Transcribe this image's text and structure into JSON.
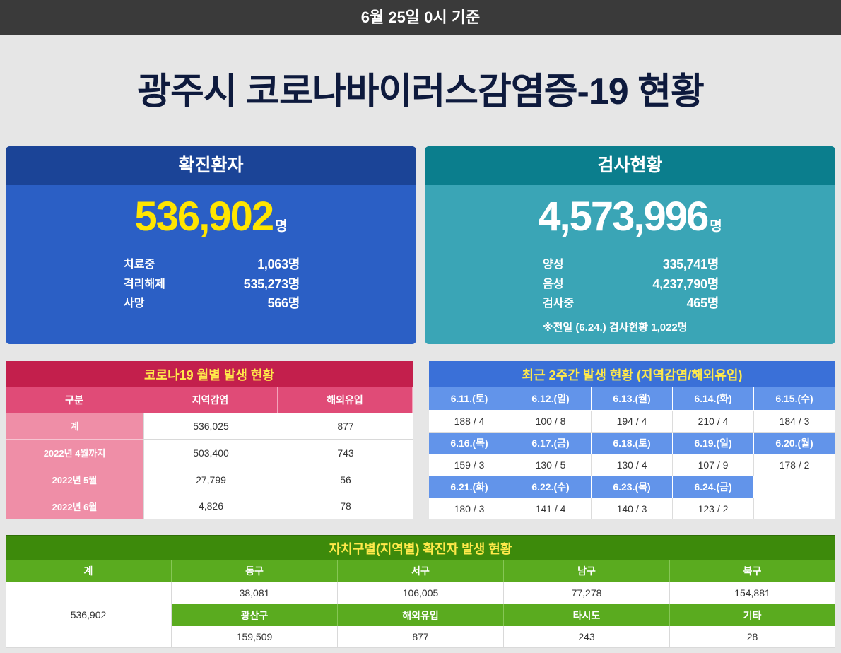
{
  "header": {
    "base_date": "6월 25일 0시 기준"
  },
  "page_title": "광주시 코로나바이러스감염증-19 현황",
  "confirmed": {
    "title": "확진환자",
    "total": "536,902",
    "unit": "명",
    "rows": [
      {
        "label": "치료중",
        "value": "1,063명"
      },
      {
        "label": "격리해제",
        "value": "535,273명"
      },
      {
        "label": "사망",
        "value": "566명"
      }
    ]
  },
  "tests": {
    "title": "검사현황",
    "total": "4,573,996",
    "unit": "명",
    "rows": [
      {
        "label": "양성",
        "value": "335,741명"
      },
      {
        "label": "음성",
        "value": "4,237,790명"
      },
      {
        "label": "검사중",
        "value": "465명"
      }
    ],
    "note": "※전일 (6.24.) 검사현황 1,022명"
  },
  "monthly": {
    "title": "코로나19 월별 발생 현황",
    "columns": [
      "구분",
      "지역감염",
      "해외유입"
    ],
    "rows": [
      [
        "계",
        "536,025",
        "877"
      ],
      [
        "2022년 4월까지",
        "503,400",
        "743"
      ],
      [
        "2022년 5월",
        "27,799",
        "56"
      ],
      [
        "2022년 6월",
        "4,826",
        "78"
      ]
    ]
  },
  "recent": {
    "title": "최근 2주간 발생 현황 (지역감염/해외유입)",
    "days": [
      {
        "date": "6.11.(토)",
        "value": "188 / 4"
      },
      {
        "date": "6.12.(일)",
        "value": "100 / 8"
      },
      {
        "date": "6.13.(월)",
        "value": "194 / 4"
      },
      {
        "date": "6.14.(화)",
        "value": "210 / 4"
      },
      {
        "date": "6.15.(수)",
        "value": "184 / 3"
      },
      {
        "date": "6.16.(목)",
        "value": "159 / 3"
      },
      {
        "date": "6.17.(금)",
        "value": "130 / 5"
      },
      {
        "date": "6.18.(토)",
        "value": "130 / 4"
      },
      {
        "date": "6.19.(일)",
        "value": "107 / 9"
      },
      {
        "date": "6.20.(월)",
        "value": "178 / 2"
      },
      {
        "date": "6.21.(화)",
        "value": "180 / 3"
      },
      {
        "date": "6.22.(수)",
        "value": "141 / 4"
      },
      {
        "date": "6.23.(목)",
        "value": "140 / 3"
      },
      {
        "date": "6.24.(금)",
        "value": "123 / 2"
      }
    ]
  },
  "districts": {
    "title": "자치구별(지역별) 확진자 발생 현황",
    "total_label": "계",
    "total_value": "536,902",
    "items": [
      {
        "name": "동구",
        "value": "38,081"
      },
      {
        "name": "서구",
        "value": "106,005"
      },
      {
        "name": "남구",
        "value": "77,278"
      },
      {
        "name": "북구",
        "value": "154,881"
      },
      {
        "name": "광산구",
        "value": "159,509"
      },
      {
        "name": "해외유입",
        "value": "877"
      },
      {
        "name": "타시도",
        "value": "243"
      },
      {
        "name": "기타",
        "value": "28"
      }
    ]
  },
  "colors": {
    "page-bg": "#e6e6e6",
    "topbar-bg": "#3a3a3a",
    "title-color": "#0e1a3d",
    "confirmed-head": "#1b4497",
    "confirmed-body": "#2b5fc5",
    "confirmed-number": "#ffe500",
    "tests-head": "#0b7e8d",
    "tests-body": "#3aa5b6",
    "table-title-text": "#ffe94a",
    "monthly-title-bg": "#c31f4c",
    "monthly-head-bg": "#e04b77",
    "monthly-label-bg": "#ef8ea7",
    "recent-title-bg": "#3a70d8",
    "recent-date-bg": "#6294ea",
    "district-title-bg": "#3d8a0b",
    "district-head-bg": "#5aab1f"
  }
}
